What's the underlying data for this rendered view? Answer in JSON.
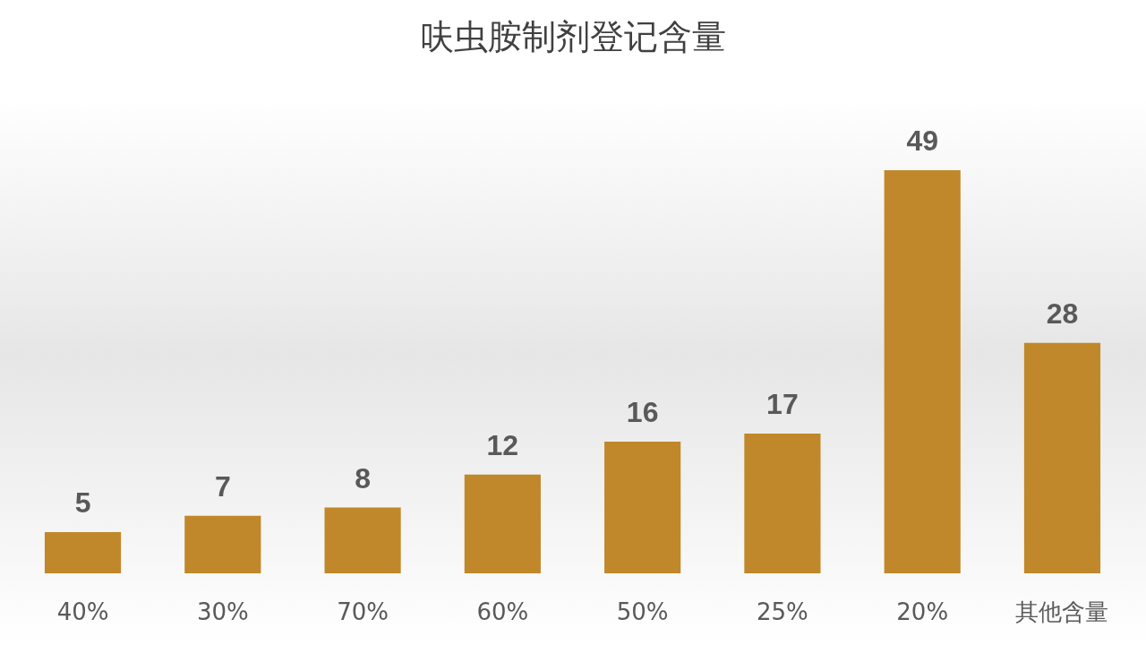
{
  "chart_data": {
    "type": "bar",
    "title": "呋虫胺制剂登记含量",
    "categories": [
      "40%",
      "30%",
      "70%",
      "60%",
      "50%",
      "25%",
      "20%",
      "其他含量"
    ],
    "values": [
      5,
      7,
      8,
      12,
      16,
      17,
      49,
      28
    ],
    "color": "#c0882a",
    "data_labels": true,
    "grid": false
  }
}
